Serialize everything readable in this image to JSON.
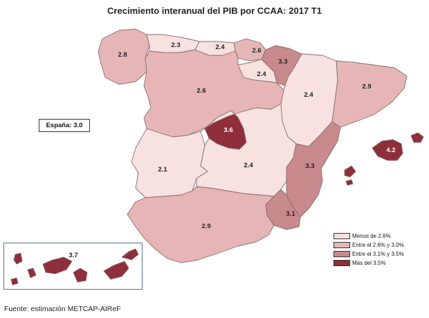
{
  "title": "Crecimiento interanual del PIB por CCAA: 2017 T1",
  "national": "España:  3.0",
  "source": "Fuente: estimación METCAP-AIReF",
  "colors": {
    "lt26": "#f7e1e1",
    "b26_30": "#e6b6b6",
    "b31_35": "#c98a8d",
    "gt35": "#8e2f3b"
  },
  "legend": [
    {
      "label": "Menos de 2.6%",
      "color": "#f7e1e1"
    },
    {
      "label": "Entre el 2.6% y 3.0%",
      "color": "#e6b6b6"
    },
    {
      "label": "Entre el 3.1% y 3.5%",
      "color": "#c98a8d"
    },
    {
      "label": "Más del 3.5%",
      "color": "#8e2f3b"
    }
  ],
  "regions": {
    "galicia": "2.8",
    "asturias": "2.3",
    "cantabria": "2.4",
    "pais_vasco": "2.6",
    "navarra": "3.3",
    "rioja": "2.4",
    "aragon": "2.4",
    "cataluna": "2.9",
    "castilla_leon": "2.6",
    "madrid": "3.6",
    "castilla_la_mancha": "2.4",
    "extremadura": "2.1",
    "valencia": "3.3",
    "baleares": "4.2",
    "murcia": "3.1",
    "andalucia": "2.9",
    "canarias": "3.7"
  }
}
